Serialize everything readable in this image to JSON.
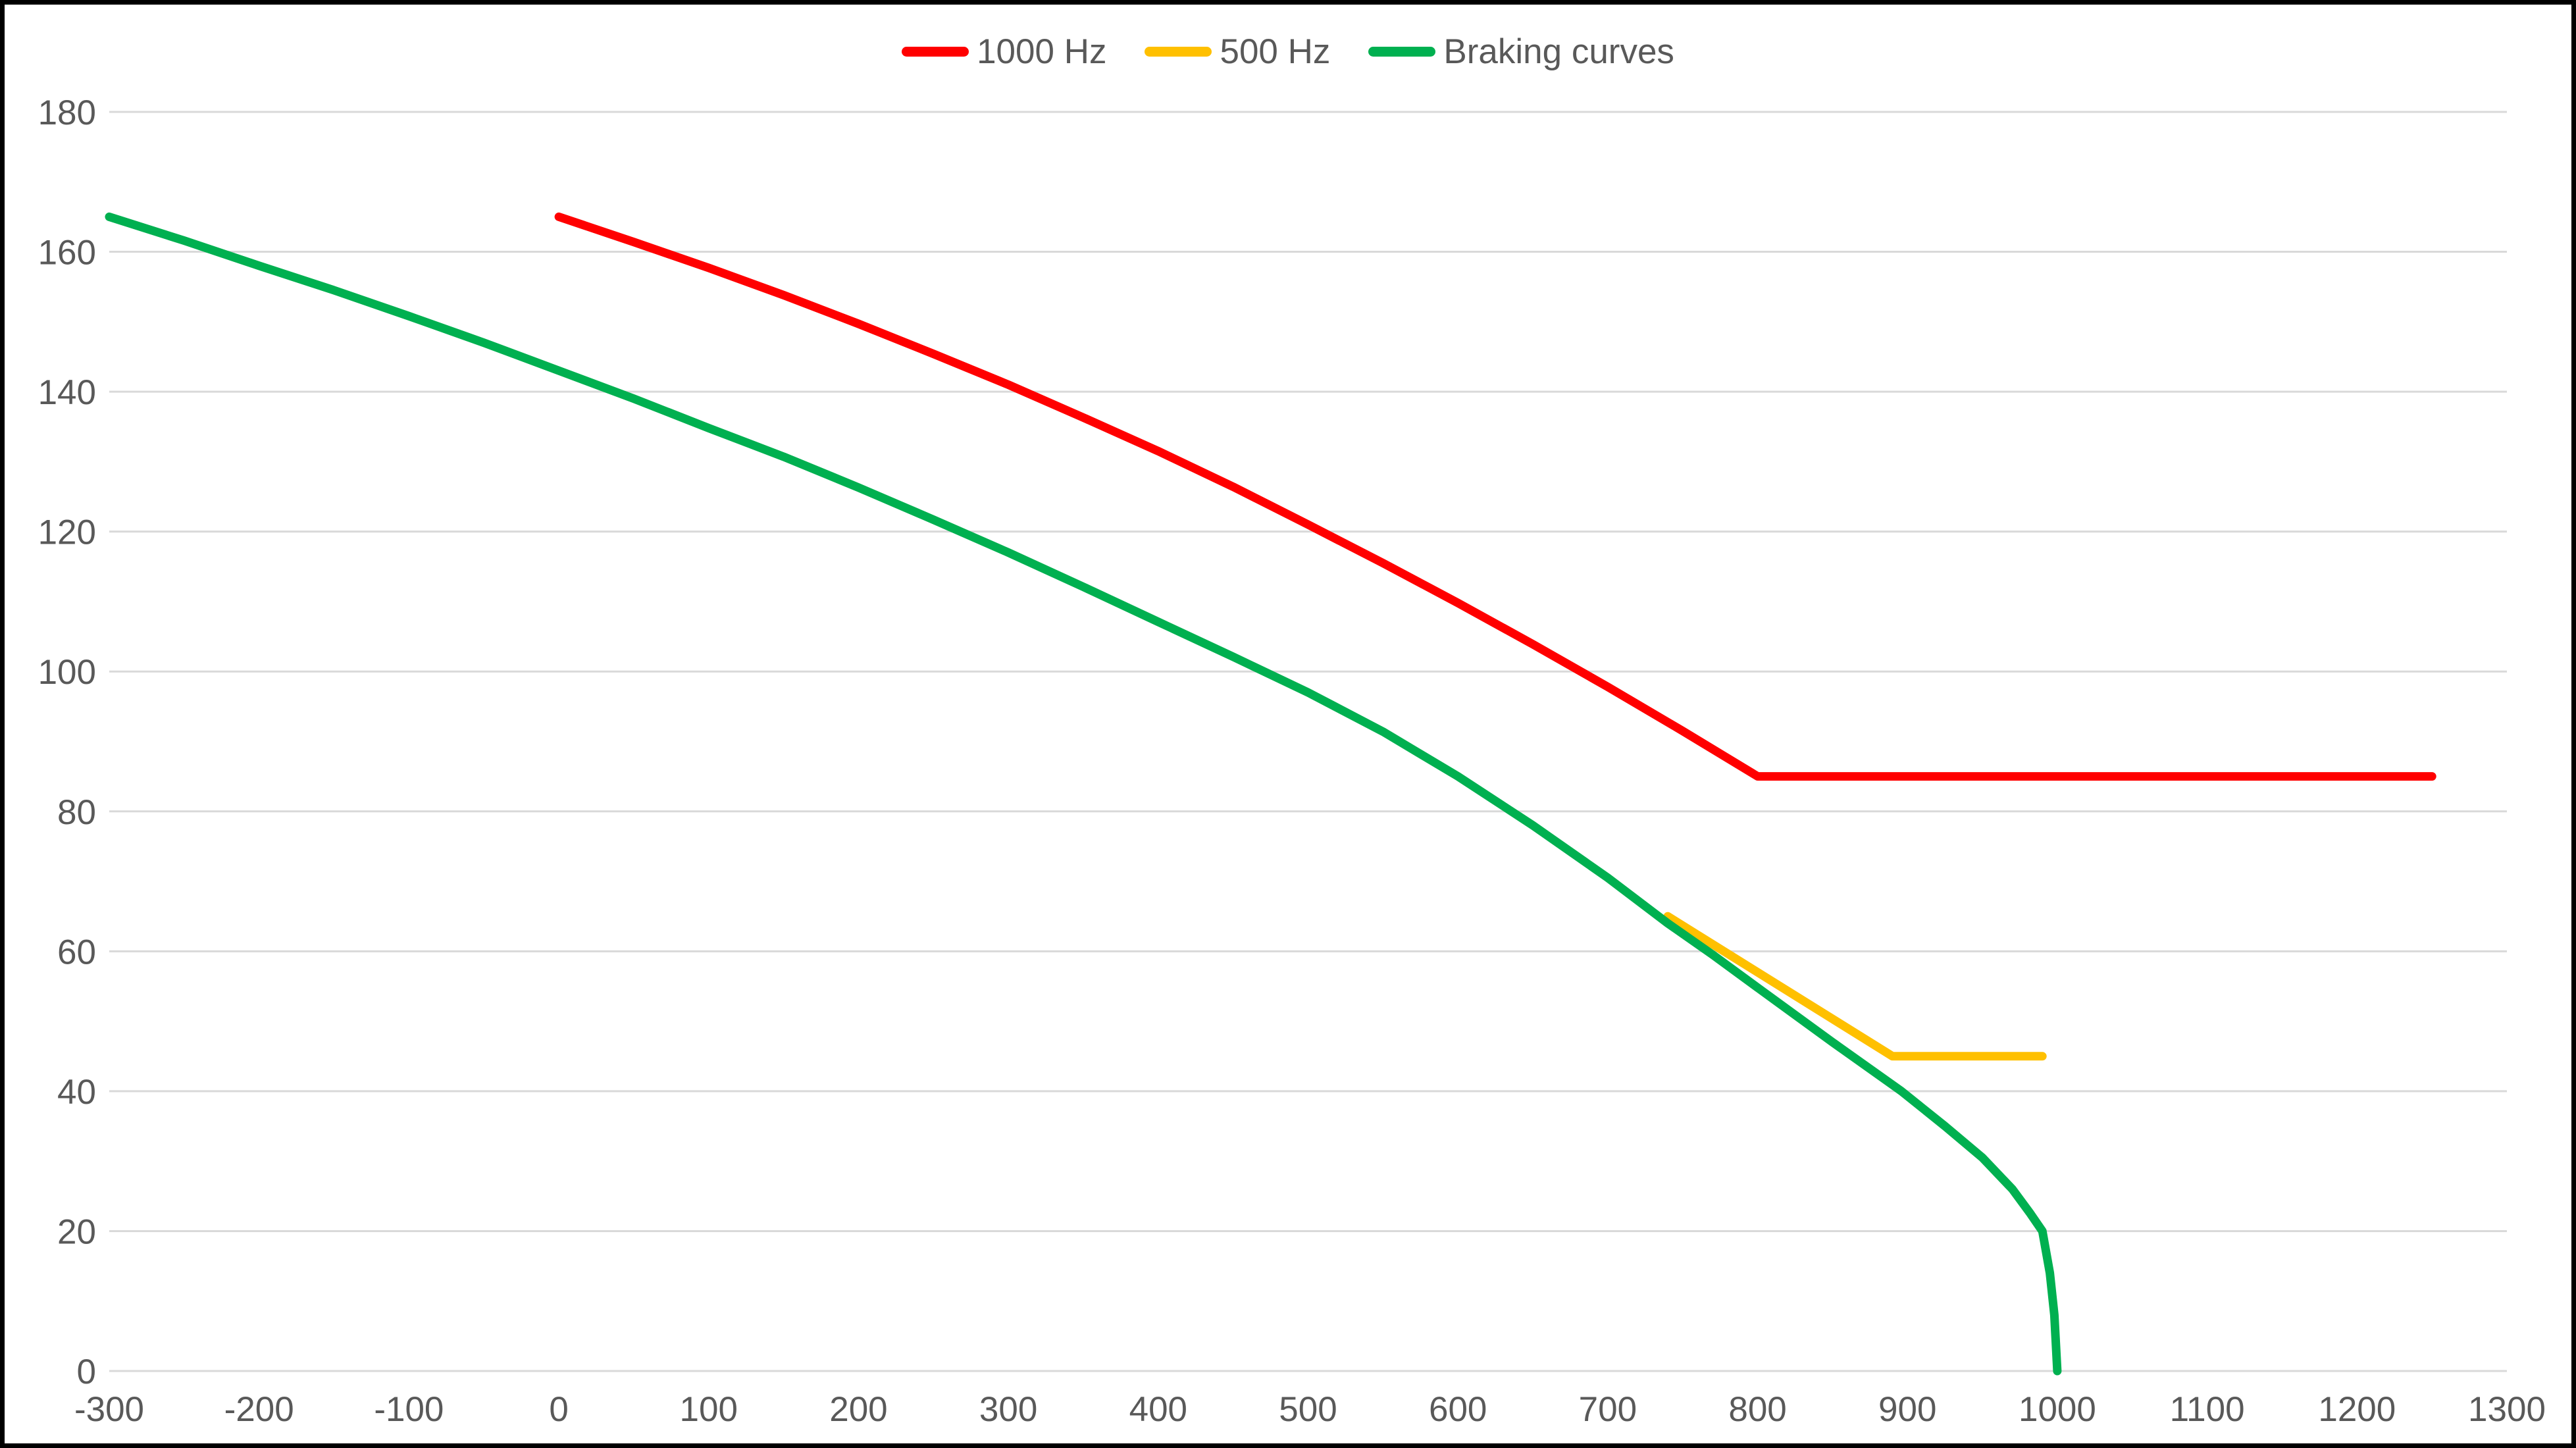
{
  "chart_data": {
    "type": "line",
    "title": "",
    "xlabel": "",
    "ylabel": "",
    "xlim": [
      -300,
      1300
    ],
    "ylim": [
      0,
      180
    ],
    "x_ticks": [
      -300,
      -200,
      -100,
      0,
      100,
      200,
      300,
      400,
      500,
      600,
      700,
      800,
      900,
      1000,
      1100,
      1200,
      1300
    ],
    "y_ticks": [
      0,
      20,
      40,
      60,
      80,
      100,
      120,
      140,
      160,
      180
    ],
    "grid": "horizontal-only",
    "legend_position": "top-center",
    "series": [
      {
        "name": "1000 Hz",
        "color": "#FF0000",
        "points": [
          [
            0,
            165
          ],
          [
            50,
            161.4
          ],
          [
            100,
            157.7
          ],
          [
            150,
            153.8
          ],
          [
            200,
            149.7
          ],
          [
            250,
            145.4
          ],
          [
            300,
            141
          ],
          [
            350,
            136.3
          ],
          [
            400,
            131.5
          ],
          [
            450,
            126.4
          ],
          [
            500,
            121
          ],
          [
            550,
            115.5
          ],
          [
            600,
            109.8
          ],
          [
            650,
            103.9
          ],
          [
            700,
            97.8
          ],
          [
            750,
            91.5
          ],
          [
            800,
            85
          ],
          [
            1250,
            85
          ]
        ]
      },
      {
        "name": "500 Hz",
        "color": "#FFC000",
        "points": [
          [
            740,
            65
          ],
          [
            890,
            45
          ],
          [
            990,
            45
          ]
        ]
      },
      {
        "name": "Braking curves",
        "color": "#00B050",
        "points": [
          [
            -300,
            165
          ],
          [
            -250,
            161.6
          ],
          [
            -200,
            158
          ],
          [
            -150,
            154.5
          ],
          [
            -100,
            150.8
          ],
          [
            -50,
            147
          ],
          [
            0,
            143
          ],
          [
            50,
            139
          ],
          [
            100,
            134.8
          ],
          [
            150,
            130.7
          ],
          [
            200,
            126.3
          ],
          [
            250,
            121.7
          ],
          [
            300,
            117
          ],
          [
            350,
            112.1
          ],
          [
            400,
            107.1
          ],
          [
            450,
            102.1
          ],
          [
            500,
            97
          ],
          [
            550,
            91.4
          ],
          [
            600,
            85
          ],
          [
            650,
            78
          ],
          [
            700,
            70.5
          ],
          [
            740,
            64
          ],
          [
            770,
            59.5
          ],
          [
            800,
            54.8
          ],
          [
            850,
            47
          ],
          [
            896,
            40
          ],
          [
            925,
            35
          ],
          [
            950,
            30.5
          ],
          [
            970,
            26
          ],
          [
            982,
            22.5
          ],
          [
            990,
            20
          ],
          [
            995,
            14
          ],
          [
            998,
            8
          ],
          [
            1000,
            0
          ]
        ]
      }
    ],
    "axis_text_color": "#595959",
    "gridline_color": "#D9D9D9",
    "background_color": "#FFFFFF",
    "border_color": "#000000"
  }
}
